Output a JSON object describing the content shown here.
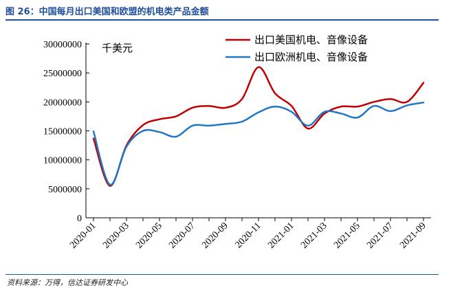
{
  "header": {
    "figure_title": "图 26：中国每月出口美国和欧盟的机电类产品金额"
  },
  "footer": {
    "source": "资料来源：万得，信达证券研发中心"
  },
  "chart_data": {
    "type": "line",
    "title": "中国每月出口美国和欧盟的机电类产品金额",
    "unit_label": "千美元",
    "xlabel": "",
    "ylabel": "",
    "ylim": [
      0,
      30000000
    ],
    "yticks": [
      0,
      5000000,
      10000000,
      15000000,
      20000000,
      25000000,
      30000000
    ],
    "ytick_labels": [
      "0",
      "5000000",
      "10000000",
      "15000000",
      "20000000",
      "25000000",
      "30000000"
    ],
    "x": [
      "2020-01",
      "2020-02",
      "2020-03",
      "2020-04",
      "2020-05",
      "2020-06",
      "2020-07",
      "2020-08",
      "2020-09",
      "2020-10",
      "2020-11",
      "2020-12",
      "2021-01",
      "2021-02",
      "2021-03",
      "2021-04",
      "2021-05",
      "2021-06",
      "2021-07",
      "2021-08",
      "2021-09"
    ],
    "xtick_labels": [
      "2020-01",
      "2020-03",
      "2020-05",
      "2020-07",
      "2020-09",
      "2020-11",
      "2021-01",
      "2021-03",
      "2021-05",
      "2021-07",
      "2021-09"
    ],
    "legend_position": "top-right",
    "series": [
      {
        "name": "出口美国机电、音像设备",
        "color": "#c00000",
        "values": [
          13700000,
          5500000,
          12500000,
          16000000,
          17000000,
          17500000,
          19000000,
          19300000,
          19000000,
          20500000,
          26000000,
          21500000,
          19300000,
          15400000,
          18000000,
          19200000,
          19200000,
          20000000,
          20500000,
          20000000,
          23300000
        ]
      },
      {
        "name": "出口欧洲机电、音像设备",
        "color": "#1f77c4",
        "values": [
          14900000,
          5700000,
          12300000,
          15000000,
          14800000,
          14000000,
          15900000,
          15900000,
          16200000,
          16600000,
          18200000,
          19200000,
          18300000,
          15900000,
          18300000,
          18000000,
          17300000,
          19300000,
          18400000,
          19400000,
          19900000
        ]
      }
    ]
  }
}
